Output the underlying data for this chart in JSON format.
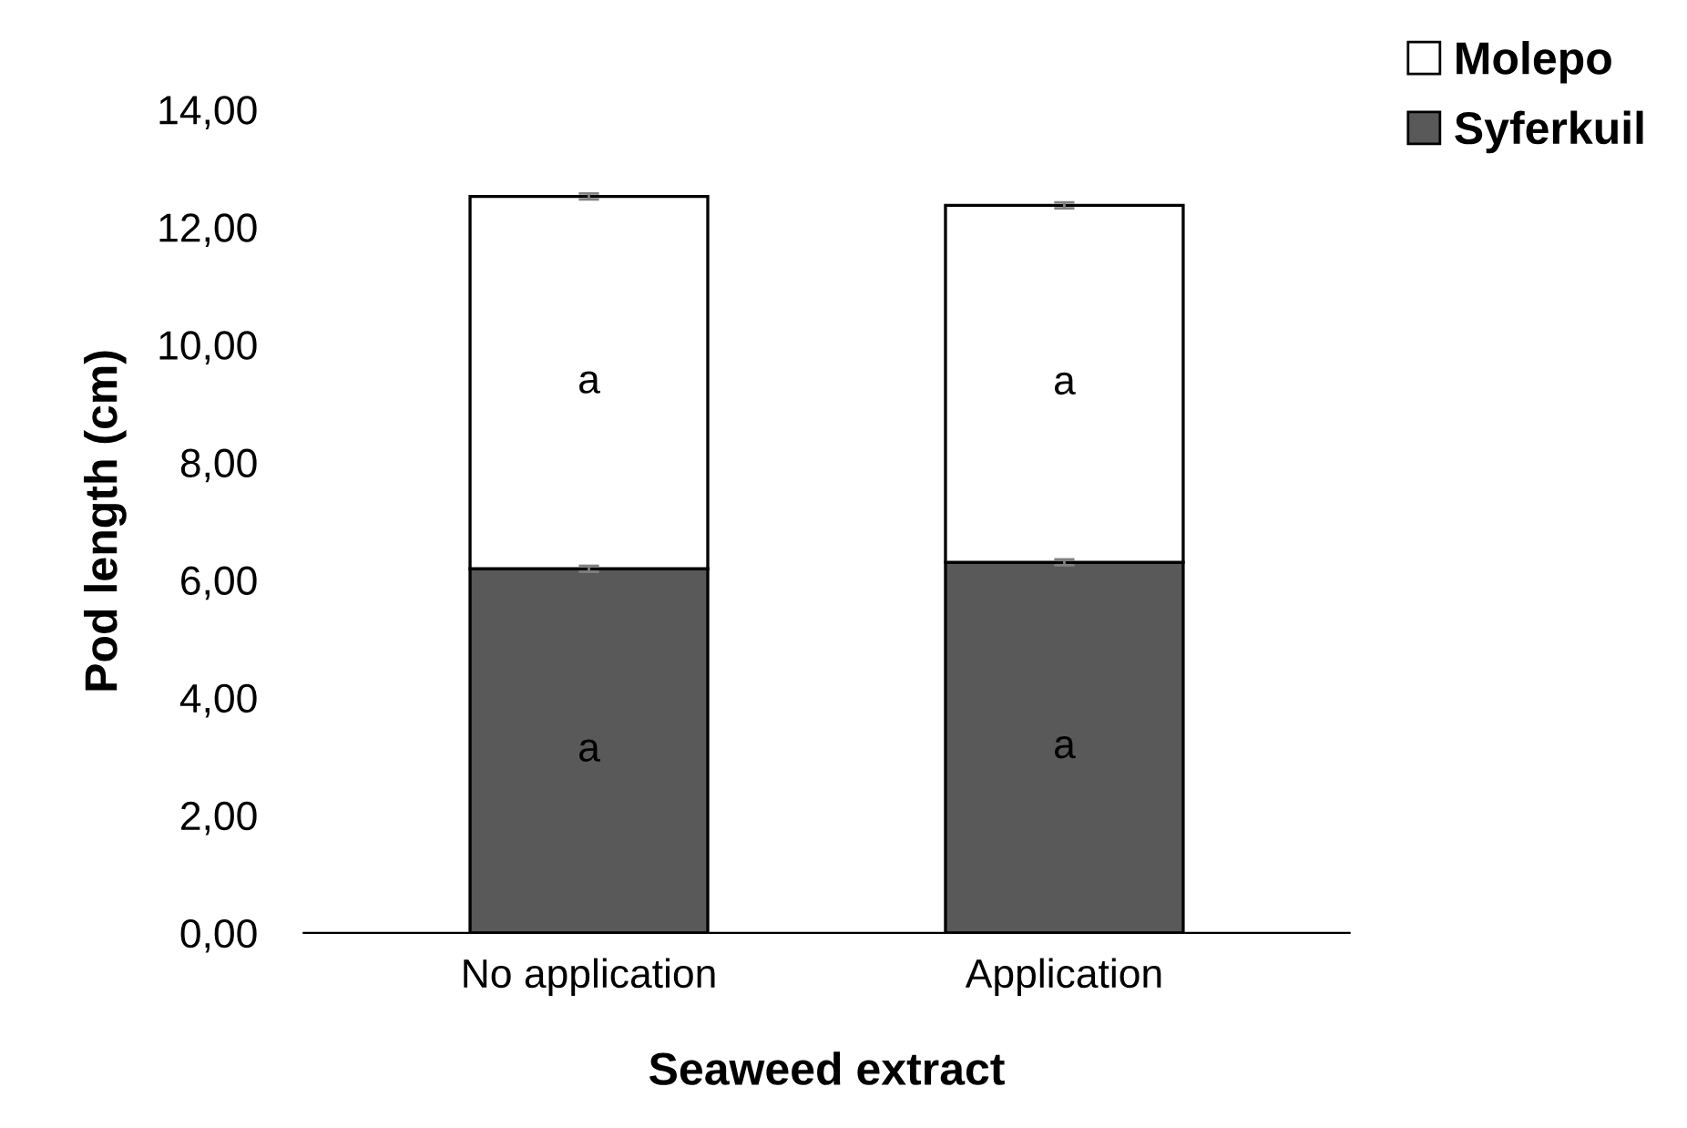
{
  "chart_data": {
    "type": "bar",
    "stacked": true,
    "xlabel": "Seaweed extract",
    "ylabel": "Pod length (cm)",
    "categories": [
      "No application",
      "Application"
    ],
    "series": [
      {
        "name": "Syferkuil",
        "color": "#595959",
        "values": [
          6.19,
          6.3
        ],
        "errors": [
          0.05,
          0.05
        ]
      },
      {
        "name": "Molepo",
        "color": "#ffffff",
        "values": [
          6.33,
          6.07
        ],
        "errors": [
          0.05,
          0.05
        ]
      }
    ],
    "ylim": [
      0,
      14
    ],
    "yticks": [
      {
        "value": 0,
        "label": "0,00"
      },
      {
        "value": 2,
        "label": "2,00"
      },
      {
        "value": 4,
        "label": "4,00"
      },
      {
        "value": 6,
        "label": "6,00"
      },
      {
        "value": 8,
        "label": "8,00"
      },
      {
        "value": 10,
        "label": "10,00"
      },
      {
        "value": 12,
        "label": "12,00"
      },
      {
        "value": 14,
        "label": "14,00"
      }
    ],
    "annotations": [
      "a",
      "a",
      "a",
      "a"
    ],
    "grid": false,
    "legend": "top right"
  }
}
